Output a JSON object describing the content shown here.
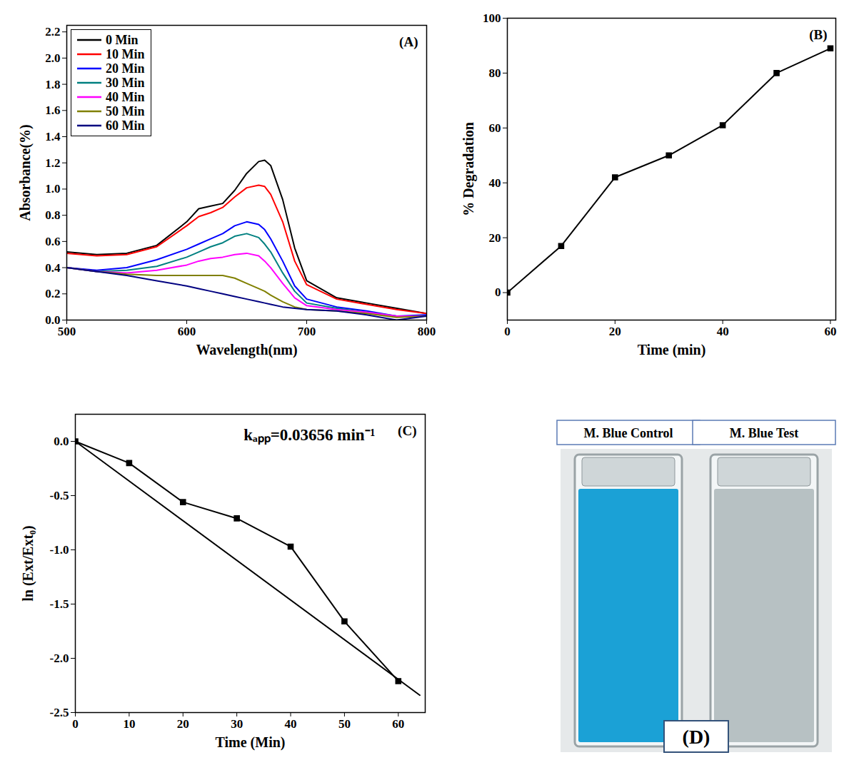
{
  "chart_data": [
    {
      "type": "line",
      "panel": "(A)",
      "x_label": "Wavelength(nm)",
      "y_label": "Absorbance(%)",
      "x": [
        500,
        525,
        550,
        575,
        600,
        610,
        620,
        630,
        640,
        650,
        660,
        665,
        670,
        680,
        690,
        700,
        725,
        750,
        775,
        800
      ],
      "series": [
        {
          "name": "0 Min",
          "color": "#000000",
          "values": [
            0.52,
            0.5,
            0.51,
            0.57,
            0.75,
            0.85,
            0.87,
            0.89,
            0.99,
            1.12,
            1.21,
            1.22,
            1.18,
            0.92,
            0.55,
            0.3,
            0.17,
            0.13,
            0.09,
            0.05
          ]
        },
        {
          "name": "10 Min",
          "color": "#ff0000",
          "values": [
            0.51,
            0.49,
            0.5,
            0.56,
            0.72,
            0.79,
            0.82,
            0.86,
            0.94,
            1.01,
            1.03,
            1.02,
            0.96,
            0.75,
            0.45,
            0.27,
            0.16,
            0.12,
            0.08,
            0.05
          ]
        },
        {
          "name": "20 Min",
          "color": "#0000ff",
          "values": [
            0.4,
            0.38,
            0.4,
            0.46,
            0.54,
            0.58,
            0.62,
            0.66,
            0.72,
            0.75,
            0.73,
            0.69,
            0.62,
            0.45,
            0.26,
            0.16,
            0.1,
            0.07,
            0.03,
            0.04
          ]
        },
        {
          "name": "30 Min",
          "color": "#008080",
          "values": [
            0.4,
            0.37,
            0.38,
            0.41,
            0.48,
            0.52,
            0.56,
            0.59,
            0.64,
            0.66,
            0.63,
            0.58,
            0.52,
            0.36,
            0.22,
            0.13,
            0.09,
            0.06,
            0.03,
            0.03
          ]
        },
        {
          "name": "40 Min",
          "color": "#ff00ff",
          "values": [
            0.4,
            0.37,
            0.36,
            0.38,
            0.42,
            0.45,
            0.47,
            0.48,
            0.5,
            0.51,
            0.49,
            0.45,
            0.4,
            0.28,
            0.17,
            0.11,
            0.08,
            0.06,
            0.03,
            0.03
          ]
        },
        {
          "name": "50 Min",
          "color": "#808000",
          "values": [
            0.4,
            0.37,
            0.35,
            0.34,
            0.34,
            0.34,
            0.34,
            0.34,
            0.32,
            0.28,
            0.24,
            0.22,
            0.19,
            0.14,
            0.1,
            0.08,
            0.07,
            0.05,
            0.02,
            0.03
          ]
        },
        {
          "name": "60 Min",
          "color": "#000080",
          "values": [
            0.4,
            0.37,
            0.34,
            0.3,
            0.26,
            0.24,
            0.22,
            0.2,
            0.18,
            0.16,
            0.14,
            0.13,
            0.12,
            0.1,
            0.09,
            0.08,
            0.07,
            0.04,
            0.0,
            0.03
          ]
        }
      ],
      "xlim": [
        500,
        800
      ],
      "xticks": [
        500,
        600,
        700,
        800
      ],
      "ylim": [
        0,
        2.25
      ],
      "yticks": [
        {
          "value": 0,
          "label": "0.0"
        },
        0.2,
        0.4,
        0.6,
        0.8,
        {
          "value": 1,
          "label": "1.0"
        },
        1.2,
        1.4,
        1.6,
        1.8,
        {
          "value": 2,
          "label": "2.0"
        },
        2.2
      ],
      "legend": "upper left"
    },
    {
      "type": "line",
      "panel": "(B)",
      "x_label": "Time (min)",
      "y_label": "% Degradation",
      "x": [
        0,
        10,
        20,
        30,
        40,
        50,
        60
      ],
      "series": [
        {
          "color": "#000000",
          "marker": "square",
          "values": [
            0,
            17,
            42,
            50,
            61,
            80,
            89
          ]
        }
      ],
      "xlim": [
        0,
        61
      ],
      "xticks": [
        0,
        20,
        40,
        60
      ],
      "ylim": [
        -10,
        100
      ],
      "yticks": [
        0,
        20,
        40,
        60,
        80,
        100
      ]
    },
    {
      "type": "line",
      "panel": "(C)",
      "annotations": [
        "kₐₚₚ=0.03656 min⁻¹"
      ],
      "x_label": "Time (Min)",
      "y_label": "ln (Ext/Ext₀)",
      "x": [
        0,
        10,
        20,
        30,
        40,
        50,
        60
      ],
      "series": [
        {
          "color": "#000000",
          "marker": "square",
          "values": [
            0,
            -0.2,
            -0.56,
            -0.71,
            -0.97,
            -1.66,
            -2.21
          ]
        }
      ],
      "fit": {
        "x": [
          0,
          64
        ],
        "values": [
          0,
          -2.34
        ],
        "color": "#000000"
      },
      "xlim": [
        0,
        65
      ],
      "xticks": [
        0,
        10,
        20,
        30,
        40,
        50,
        60
      ],
      "ylim": [
        -2.5,
        0.25
      ],
      "yticks": [
        {
          "value": 0,
          "label": "0.0"
        },
        -0.5,
        {
          "value": -1,
          "label": "-1.0"
        },
        -1.5,
        {
          "value": -2,
          "label": "-2.0"
        },
        -2.5
      ]
    },
    {
      "type": "photo",
      "panel": "(D)",
      "labels": [
        "M. Blue Control",
        "M. Blue Test"
      ],
      "colors": [
        "#1ba1d6",
        "#b7c1c3"
      ]
    }
  ]
}
